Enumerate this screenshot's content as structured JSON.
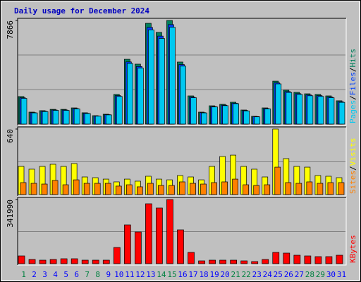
{
  "chart_data": [
    {
      "type": "bar",
      "title": "Daily usage for December 2024",
      "legend_separator": "/",
      "ylim": [
        0,
        7866
      ],
      "yticks": [
        7866
      ],
      "gridlines": [
        2622,
        5244
      ],
      "series": [
        {
          "name": "Hits",
          "color": "#00805C",
          "values": [
            2090,
            910,
            1020,
            1120,
            1120,
            1230,
            860,
            640,
            750,
            2250,
            4920,
            4550,
            7650,
            6960,
            7866,
            4710,
            2140,
            910,
            1390,
            1500,
            1660,
            1070,
            590,
            1230,
            3260,
            2570,
            2410,
            2300,
            2250,
            2140,
            1770
          ]
        },
        {
          "name": "Files",
          "color": "#0040FF",
          "values": [
            2000,
            870,
            980,
            1070,
            1070,
            1180,
            820,
            610,
            720,
            2160,
            4720,
            4370,
            7340,
            6680,
            7550,
            4520,
            2050,
            870,
            1330,
            1440,
            1590,
            1030,
            570,
            1180,
            3130,
            2470,
            2310,
            2210,
            2160,
            2050,
            1700
          ]
        },
        {
          "name": "Pages",
          "color": "#00C8F0",
          "values": [
            1950,
            850,
            950,
            1040,
            1040,
            1150,
            800,
            600,
            700,
            2100,
            4600,
            4250,
            7150,
            6500,
            7350,
            4400,
            2000,
            850,
            1300,
            1400,
            1550,
            1000,
            550,
            1150,
            3050,
            2400,
            2250,
            2150,
            2100,
            2000,
            1650
          ]
        }
      ]
    },
    {
      "type": "bar",
      "legend_separator": "/",
      "ylim": [
        0,
        640
      ],
      "yticks": [
        640
      ],
      "gridlines": [
        320
      ],
      "series": [
        {
          "name": "Visits",
          "color": "#FFFF00",
          "values": [
            275,
            248,
            275,
            296,
            275,
            303,
            172,
            165,
            151,
            124,
            151,
            131,
            179,
            151,
            144,
            186,
            172,
            144,
            275,
            372,
            385,
            275,
            248,
            172,
            640,
            351,
            275,
            268,
            186,
            179,
            165
          ]
        },
        {
          "name": "Sites",
          "color": "#FF8000",
          "values": [
            117,
            110,
            103,
            138,
            96,
            144,
            110,
            110,
            110,
            83,
            96,
            76,
            110,
            89,
            89,
            124,
            110,
            103,
            117,
            124,
            151,
            96,
            89,
            96,
            268,
            117,
            110,
            124,
            110,
            117,
            117
          ]
        }
      ]
    },
    {
      "type": "bar",
      "ylim": [
        0,
        341990
      ],
      "yticks": [
        341990
      ],
      "gridlines": [
        170995
      ],
      "categories": [
        "1",
        "2",
        "3",
        "4",
        "5",
        "6",
        "7",
        "8",
        "9",
        "10",
        "11",
        "12",
        "13",
        "14",
        "15",
        "16",
        "17",
        "18",
        "19",
        "20",
        "21",
        "22",
        "23",
        "24",
        "25",
        "26",
        "27",
        "28",
        "29",
        "30",
        "31"
      ],
      "category_colors": [
        "#008040",
        "#0000FF",
        "#0000FF",
        "#0000FF",
        "#0000FF",
        "#0000FF",
        "#008040",
        "#008040",
        "#0000FF",
        "#0000FF",
        "#0000FF",
        "#0000FF",
        "#0000FF",
        "#008040",
        "#008040",
        "#0000FF",
        "#0000FF",
        "#0000FF",
        "#0000FF",
        "#0000FF",
        "#008040",
        "#008040",
        "#0000FF",
        "#0000FF",
        "#0000FF",
        "#0000FF",
        "#0000FF",
        "#008040",
        "#008040",
        "#0000FF",
        "#0000FF"
      ],
      "series": [
        {
          "name": "KBytes",
          "color": "#FF0000",
          "values": [
            41300,
            22500,
            18800,
            22500,
            26300,
            26300,
            18800,
            18800,
            18800,
            86400,
            206700,
            169100,
            319400,
            296900,
            341990,
            180400,
            60100,
            15000,
            18800,
            18800,
            18800,
            15000,
            11300,
            22500,
            60100,
            56400,
            45100,
            41300,
            37600,
            37600,
            45100
          ]
        }
      ]
    }
  ]
}
